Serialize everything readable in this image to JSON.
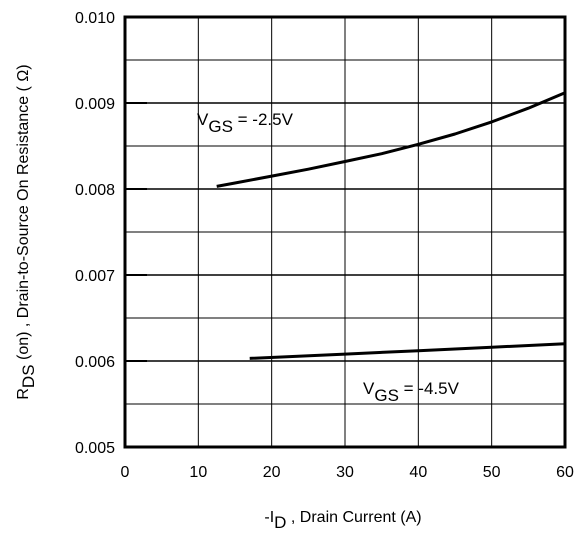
{
  "chart_data": {
    "type": "line",
    "title": "",
    "xlabel": {
      "prefix": "-I",
      "sub": "D",
      "rest": " , Drain Current (A)"
    },
    "ylabel": {
      "prefix": "R",
      "sub": "DS",
      "rest": " (on) , Drain-to-Source On Resistance ( Ω)"
    },
    "xlim": [
      0,
      60
    ],
    "ylim": [
      0.005,
      0.01
    ],
    "xticks": [
      0,
      10,
      20,
      30,
      40,
      50,
      60
    ],
    "xtick_labels": [
      "0",
      "10",
      "20",
      "30",
      "40",
      "50",
      "60"
    ],
    "yticks": [
      0.005,
      0.006,
      0.007,
      0.008,
      0.009,
      0.01
    ],
    "ytick_labels": [
      "0.005",
      "0.006",
      "0.007",
      "0.008",
      "0.009",
      "0.010"
    ],
    "grid": true,
    "series": [
      {
        "name": "V_GS = -2.5V",
        "label": {
          "prefix": "V",
          "sub": "GS",
          "rest": " = -2.5V"
        },
        "x": [
          12.5,
          15,
          20,
          25,
          30,
          35,
          40,
          45,
          50,
          55,
          60
        ],
        "y": [
          0.00803,
          0.00807,
          0.00815,
          0.00823,
          0.00832,
          0.00841,
          0.00852,
          0.00864,
          0.00878,
          0.00894,
          0.00912
        ]
      },
      {
        "name": "V_GS = -4.5V",
        "label": {
          "prefix": "V",
          "sub": "GS",
          "rest": " = -4.5V"
        },
        "x": [
          17,
          30,
          40,
          50,
          60
        ],
        "y": [
          0.00603,
          0.00608,
          0.00612,
          0.00616,
          0.0062
        ]
      }
    ]
  }
}
